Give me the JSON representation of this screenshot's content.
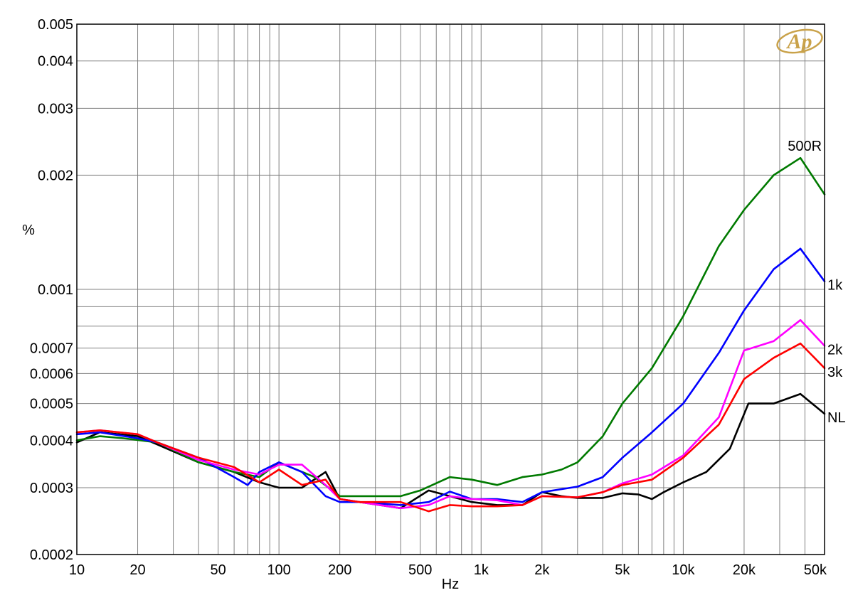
{
  "logo_text": "Ap",
  "chart_data": {
    "type": "line",
    "xlabel": "Hz",
    "ylabel": "%",
    "xscale": "log",
    "yscale": "log",
    "xlim": [
      10,
      50000
    ],
    "ylim": [
      0.0002,
      0.005
    ],
    "grid": true,
    "x_ticks": [
      {
        "value": 10,
        "label": "10"
      },
      {
        "value": 20,
        "label": "20"
      },
      {
        "value": 50,
        "label": "50"
      },
      {
        "value": 100,
        "label": "100"
      },
      {
        "value": 200,
        "label": "200"
      },
      {
        "value": 500,
        "label": "500"
      },
      {
        "value": 1000,
        "label": "1k"
      },
      {
        "value": 2000,
        "label": "2k"
      },
      {
        "value": 5000,
        "label": "5k"
      },
      {
        "value": 10000,
        "label": "10k"
      },
      {
        "value": 20000,
        "label": "20k"
      },
      {
        "value": 50000,
        "label": "50k"
      }
    ],
    "y_ticks": [
      {
        "value": 0.005,
        "label": "0.005"
      },
      {
        "value": 0.004,
        "label": "0.004"
      },
      {
        "value": 0.003,
        "label": "0.003"
      },
      {
        "value": 0.002,
        "label": "0.002"
      },
      {
        "value": 0.001,
        "label": "0.001"
      },
      {
        "value": 0.0007,
        "label": "0.0007"
      },
      {
        "value": 0.0006,
        "label": "0.0006"
      },
      {
        "value": 0.0005,
        "label": "0.0005"
      },
      {
        "value": 0.0004,
        "label": "0.0004"
      },
      {
        "value": 0.0003,
        "label": "0.0003"
      },
      {
        "value": 0.0002,
        "label": "0.0002"
      }
    ],
    "x_minor_grid": [
      30,
      40,
      60,
      70,
      80,
      90,
      300,
      400,
      600,
      700,
      800,
      900,
      3000,
      4000,
      6000,
      7000,
      8000,
      9000,
      30000,
      40000
    ],
    "y_minor_grid": [
      0.0009,
      0.0008
    ],
    "series": [
      {
        "name": "NL",
        "color": "#000000",
        "x": [
          10,
          13,
          20,
          25,
          40,
          60,
          80,
          100,
          130,
          170,
          200,
          250,
          400,
          550,
          700,
          900,
          1200,
          1600,
          2000,
          2500,
          3000,
          4000,
          5000,
          6000,
          7000,
          8000,
          10000,
          13000,
          17000,
          21000,
          28000,
          38000,
          50000
        ],
        "y": [
          0.000395,
          0.00042,
          0.00041,
          0.00039,
          0.00035,
          0.00033,
          0.00031,
          0.0003,
          0.0003,
          0.00033,
          0.00028,
          0.000275,
          0.000265,
          0.000295,
          0.000285,
          0.000275,
          0.00027,
          0.00027,
          0.000292,
          0.000285,
          0.000282,
          0.000282,
          0.00029,
          0.000288,
          0.00028,
          0.000292,
          0.00031,
          0.00033,
          0.00038,
          0.0005,
          0.0005,
          0.00053,
          0.00047
        ]
      },
      {
        "name": "500R",
        "color": "#007a00",
        "x": [
          10,
          13,
          17,
          25,
          40,
          60,
          80,
          100,
          150,
          200,
          300,
          400,
          500,
          700,
          900,
          1200,
          1600,
          2000,
          2500,
          3000,
          4000,
          5000,
          7000,
          10000,
          15000,
          20000,
          28000,
          38000,
          50000
        ],
        "y": [
          0.0004,
          0.00041,
          0.000405,
          0.000395,
          0.00035,
          0.00033,
          0.00032,
          0.00035,
          0.00032,
          0.000285,
          0.000285,
          0.000285,
          0.000295,
          0.00032,
          0.000315,
          0.000305,
          0.00032,
          0.000325,
          0.000335,
          0.00035,
          0.00041,
          0.0005,
          0.00062,
          0.00085,
          0.0013,
          0.00162,
          0.002,
          0.00222,
          0.00178
        ]
      },
      {
        "name": "1k",
        "color": "#0000ff",
        "x": [
          10,
          13,
          20,
          25,
          40,
          60,
          70,
          80,
          100,
          130,
          170,
          200,
          250,
          400,
          550,
          700,
          900,
          1200,
          1600,
          2000,
          3000,
          4000,
          5000,
          7000,
          10000,
          15000,
          20000,
          28000,
          38000,
          50000
        ],
        "y": [
          0.000415,
          0.00042,
          0.000405,
          0.000395,
          0.00036,
          0.00032,
          0.000305,
          0.00033,
          0.00035,
          0.00033,
          0.000285,
          0.000275,
          0.000275,
          0.00027,
          0.000275,
          0.000293,
          0.00028,
          0.00028,
          0.000275,
          0.000292,
          0.000302,
          0.00032,
          0.00036,
          0.00042,
          0.0005,
          0.00068,
          0.00088,
          0.00113,
          0.00128,
          0.00105
        ]
      },
      {
        "name": "2k",
        "color": "#ff00ff",
        "x": [
          10,
          13,
          20,
          25,
          40,
          60,
          80,
          100,
          130,
          170,
          200,
          250,
          400,
          550,
          700,
          900,
          1200,
          1600,
          2000,
          3000,
          4000,
          5000,
          7000,
          10000,
          15000,
          20000,
          28000,
          38000,
          50000
        ],
        "y": [
          0.00042,
          0.000425,
          0.000415,
          0.000395,
          0.000355,
          0.000335,
          0.000325,
          0.000345,
          0.000345,
          0.000305,
          0.00028,
          0.000275,
          0.000265,
          0.00027,
          0.000285,
          0.00028,
          0.000278,
          0.00027,
          0.000285,
          0.000283,
          0.000292,
          0.000308,
          0.000325,
          0.000365,
          0.00046,
          0.00069,
          0.00073,
          0.00083,
          0.00071
        ]
      },
      {
        "name": "3k",
        "color": "#ff0000",
        "x": [
          10,
          13,
          20,
          25,
          40,
          60,
          80,
          100,
          130,
          170,
          200,
          250,
          400,
          550,
          700,
          900,
          1200,
          1600,
          2000,
          3000,
          4000,
          5000,
          7000,
          10000,
          15000,
          20000,
          28000,
          38000,
          50000
        ],
        "y": [
          0.00042,
          0.000425,
          0.000415,
          0.000395,
          0.00036,
          0.00034,
          0.00031,
          0.000335,
          0.000305,
          0.000315,
          0.00028,
          0.000275,
          0.000275,
          0.00026,
          0.00027,
          0.000268,
          0.000268,
          0.00027,
          0.000285,
          0.000283,
          0.000292,
          0.000305,
          0.000315,
          0.00036,
          0.00044,
          0.00058,
          0.00066,
          0.00072,
          0.00062
        ]
      }
    ],
    "series_labels": [
      {
        "series": "500R",
        "text": "500R"
      },
      {
        "series": "1k",
        "text": "1k"
      },
      {
        "series": "2k",
        "text": "2k"
      },
      {
        "series": "3k",
        "text": "3k"
      },
      {
        "series": "NL",
        "text": "NL"
      }
    ]
  }
}
